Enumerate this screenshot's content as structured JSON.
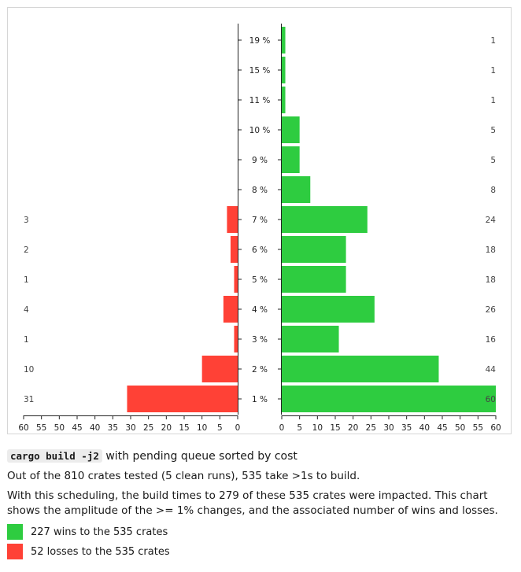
{
  "chart_data": {
    "type": "bar",
    "orientation": "horizontal-diverging",
    "categories": [
      "19 %",
      "15 %",
      "11 %",
      "10 %",
      "9 %",
      "8 %",
      "7 %",
      "6 %",
      "5 %",
      "4 %",
      "3 %",
      "2 %",
      "1 %"
    ],
    "series": [
      {
        "name": "losses",
        "values": [
          0,
          0,
          0,
          0,
          0,
          0,
          3,
          2,
          1,
          4,
          1,
          10,
          31
        ],
        "value_labels": [
          "",
          "",
          "",
          "",
          "",
          "",
          "3",
          "2",
          "1",
          "4",
          "1",
          "10",
          "31"
        ]
      },
      {
        "name": "wins",
        "values": [
          1,
          1,
          1,
          5,
          5,
          8,
          24,
          18,
          18,
          26,
          16,
          44,
          60
        ],
        "value_labels": [
          "1",
          "1",
          "1",
          "5",
          "5",
          "8",
          "24",
          "18",
          "18",
          "26",
          "16",
          "44",
          "60"
        ]
      }
    ],
    "left_axis_ticks": [
      "60",
      "55",
      "50",
      "45",
      "40",
      "35",
      "30",
      "25",
      "20",
      "15",
      "10",
      "5",
      "0"
    ],
    "right_axis_ticks": [
      "0",
      "5",
      "10",
      "15",
      "20",
      "25",
      "30",
      "35",
      "40",
      "45",
      "50",
      "55",
      "60"
    ],
    "xlim": [
      0,
      60
    ],
    "colors": {
      "wins": "#2ecc40",
      "losses": "#ff4136"
    },
    "grid": false
  },
  "caption": {
    "command": "cargo build -j2",
    "title_rest": " with pending queue sorted by cost",
    "line2": "Out of the 810 crates tested (5 clean runs), 535 take >1s to build.",
    "line3": "With this scheduling, the build times to 279 of these 535 crates were impacted. This chart shows the amplitude of the >= 1% changes, and the associated number of wins and losses."
  },
  "legend": [
    {
      "label": "227 wins to the 535 crates",
      "color": "#2ecc40"
    },
    {
      "label": "52 losses to the 535 crates",
      "color": "#ff4136"
    }
  ]
}
